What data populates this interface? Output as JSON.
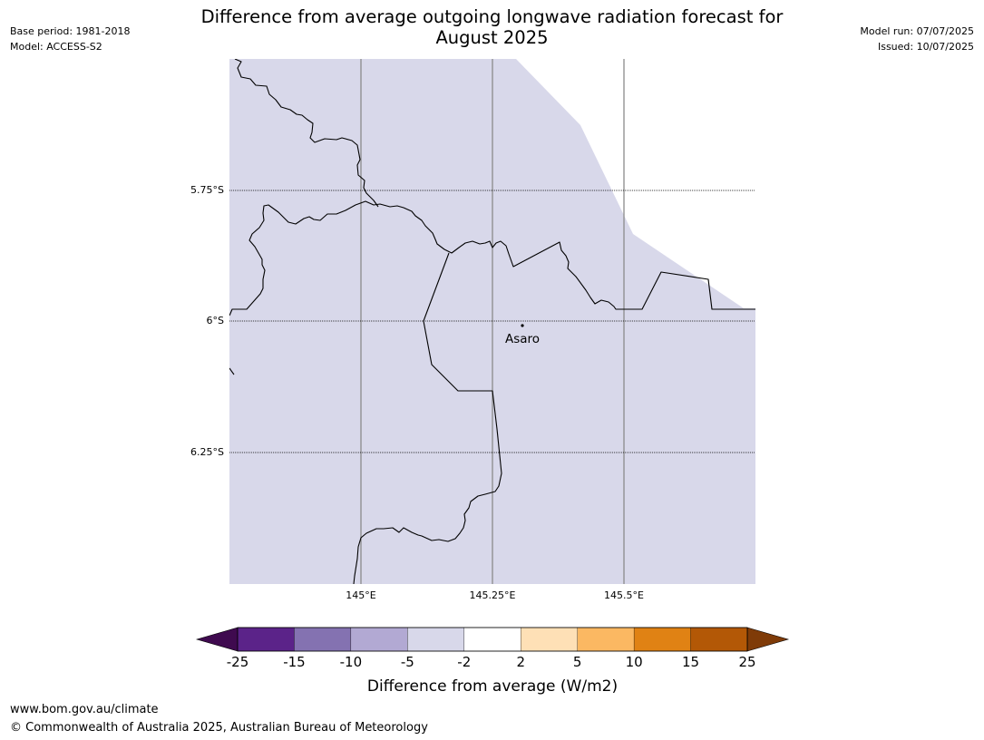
{
  "header": {
    "title_line1": "Difference from average outgoing longwave radiation forecast for",
    "title_line2": "August 2025",
    "base_period": "Base period: 1981-2018",
    "model": "Model: ACCESS-S2",
    "model_run": "Model run: 07/07/2025",
    "issued": "Issued: 10/07/2025"
  },
  "map": {
    "fill_color": "#d8d8ea",
    "latitude_labels": [
      "5.75°S",
      "6°S",
      "6.25°S"
    ],
    "longitude_labels": [
      "145°E",
      "145.25°E",
      "145.5°E"
    ],
    "place_name": "Asaro"
  },
  "legend": {
    "title": "Difference from average (W/m2)",
    "tick_labels": [
      "-25",
      "-15",
      "-10",
      "-5",
      "-2",
      "2",
      "5",
      "10",
      "15",
      "25"
    ],
    "colors": {
      "extend_low": "#3f0a4f",
      "bins": [
        "#5b2389",
        "#8472b1",
        "#b2a9d3",
        "#d8d8ea",
        "#ffffff",
        "#fee0b6",
        "#fbb862",
        "#e08214",
        "#b35806"
      ],
      "extend_high": "#7f3b08"
    }
  },
  "footer": {
    "url": "www.bom.gov.au/climate",
    "copyright": "© Commonwealth of Australia 2025, Australian Bureau of Meteorology"
  }
}
